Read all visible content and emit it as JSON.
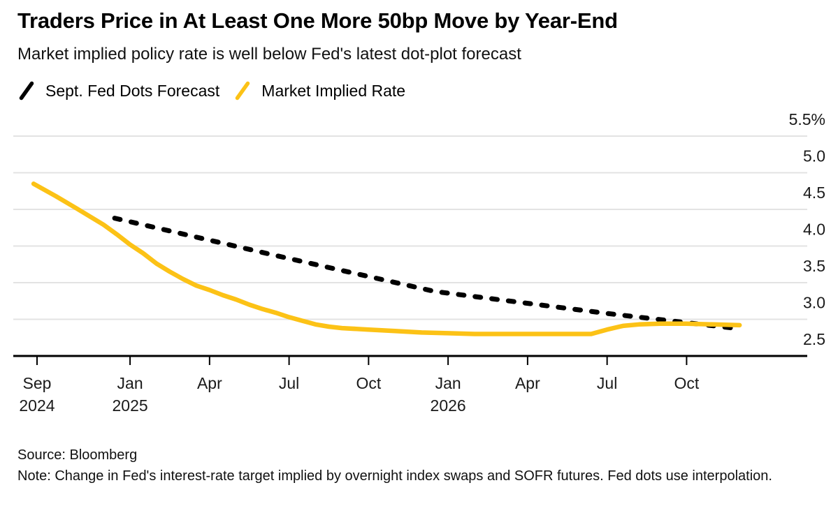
{
  "header": {
    "title": "Traders Price in At Least One More 50bp Move by Year-End",
    "subtitle": "Market implied policy rate is well below Fed's latest dot-plot forecast"
  },
  "legend": [
    {
      "label": "Sept. Fed Dots Forecast",
      "color": "#000000"
    },
    {
      "label": "Market Implied Rate",
      "color": "#FCC216"
    }
  ],
  "footer": {
    "source": "Source: Bloomberg",
    "note": "Note: Change in Fed's interest-rate target implied by overnight index swaps and SOFR futures. Fed dots use interpolation."
  },
  "chart_data": {
    "type": "line",
    "title": "Traders Price in At Least One More 50bp Move by Year-End",
    "x_unit": "months since Sep 1 2024",
    "ylim": [
      2.5,
      5.5
    ],
    "grid": true,
    "legend_position": "top-left",
    "y_axis_side": "right",
    "y_ticks": [
      {
        "v": 5.5,
        "label": "5.5%"
      },
      {
        "v": 5.0,
        "label": "5.0"
      },
      {
        "v": 4.5,
        "label": "4.5"
      },
      {
        "v": 4.0,
        "label": "4.0"
      },
      {
        "v": 3.5,
        "label": "3.5"
      },
      {
        "v": 3.0,
        "label": "3.0"
      },
      {
        "v": 2.5,
        "label": "2.5"
      }
    ],
    "x_ticks": [
      {
        "t": 0.49,
        "month": "Sep",
        "year": "2024"
      },
      {
        "t": 4,
        "month": "Jan",
        "year": "2025"
      },
      {
        "t": 7,
        "month": "Apr"
      },
      {
        "t": 10,
        "month": "Jul"
      },
      {
        "t": 13,
        "month": "Oct"
      },
      {
        "t": 16,
        "month": "Jan",
        "year": "2026"
      },
      {
        "t": 19,
        "month": "Apr"
      },
      {
        "t": 22,
        "month": "Jul"
      },
      {
        "t": 25,
        "month": "Oct"
      }
    ],
    "series": [
      {
        "name": "Sept. Fed Dots Forecast",
        "color": "#000000",
        "dashed": true,
        "width": 7,
        "points": [
          [
            3.42,
            4.38
          ],
          [
            9.5,
            3.87
          ],
          [
            15.5,
            3.38
          ],
          [
            17.0,
            3.31
          ],
          [
            22.0,
            3.08
          ],
          [
            27.0,
            2.87
          ]
        ]
      },
      {
        "name": "Market Implied Rate",
        "color": "#FCC216",
        "dashed": false,
        "width": 6.5,
        "points": [
          [
            0.36,
            4.85
          ],
          [
            1.2,
            4.68
          ],
          [
            2.0,
            4.51
          ],
          [
            2.5,
            4.4
          ],
          [
            3.0,
            4.29
          ],
          [
            3.5,
            4.16
          ],
          [
            4.0,
            4.02
          ],
          [
            4.5,
            3.9
          ],
          [
            5.0,
            3.76
          ],
          [
            5.5,
            3.65
          ],
          [
            6.0,
            3.55
          ],
          [
            6.5,
            3.46
          ],
          [
            7.0,
            3.4
          ],
          [
            7.5,
            3.33
          ],
          [
            8.0,
            3.27
          ],
          [
            8.5,
            3.2
          ],
          [
            9.0,
            3.14
          ],
          [
            9.5,
            3.09
          ],
          [
            10.0,
            3.03
          ],
          [
            10.5,
            2.98
          ],
          [
            11.0,
            2.93
          ],
          [
            11.5,
            2.9
          ],
          [
            12.0,
            2.88
          ],
          [
            13.0,
            2.86
          ],
          [
            14.0,
            2.84
          ],
          [
            15.0,
            2.82
          ],
          [
            16.0,
            2.81
          ],
          [
            17.0,
            2.8
          ],
          [
            18.0,
            2.8
          ],
          [
            19.0,
            2.8
          ],
          [
            20.0,
            2.8
          ],
          [
            21.0,
            2.8
          ],
          [
            21.4,
            2.8
          ],
          [
            22.0,
            2.86
          ],
          [
            22.6,
            2.91
          ],
          [
            23.2,
            2.93
          ],
          [
            24.0,
            2.94
          ],
          [
            25.0,
            2.94
          ],
          [
            26.0,
            2.93
          ],
          [
            27.0,
            2.92
          ]
        ]
      }
    ]
  }
}
